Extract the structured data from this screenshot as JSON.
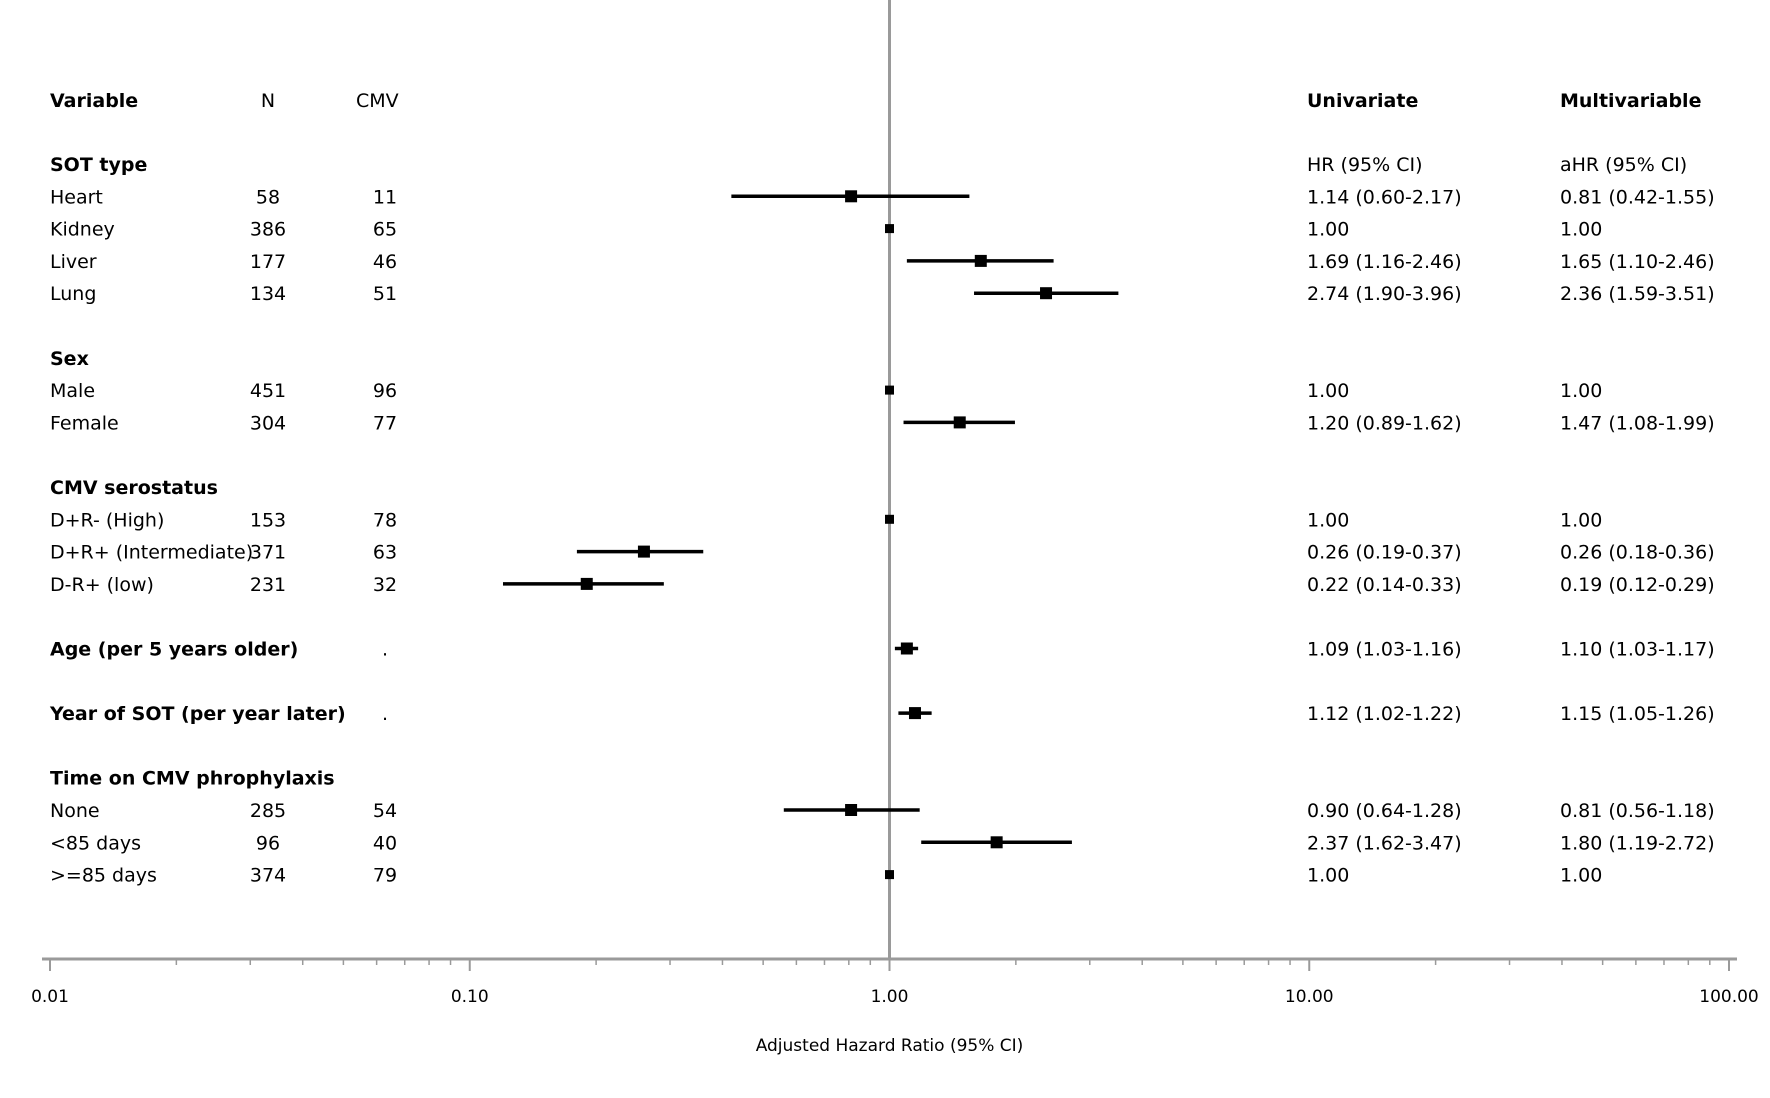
{
  "headers": {
    "variable": "Variable",
    "n": "N",
    "cmv": "CMV",
    "univariate": "Univariate",
    "multivariable": "Multivariable",
    "univariate_sub": "HR (95% CI)",
    "multivariable_sub": "aHR (95% CI)"
  },
  "rows": [
    {
      "type": "group",
      "label": "SOT type"
    },
    {
      "type": "item",
      "label": "Heart",
      "n": "58",
      "cmv": "11",
      "est": 0.81,
      "lo": 0.42,
      "hi": 1.55,
      "uni": "1.14 (0.60-2.17)",
      "multi": "0.81 (0.42-1.55)"
    },
    {
      "type": "item",
      "label": "Kidney",
      "n": "386",
      "cmv": "65",
      "est": 1.0,
      "lo": 1.0,
      "hi": 1.0,
      "uni": "1.00",
      "multi": "1.00"
    },
    {
      "type": "item",
      "label": "Liver",
      "n": "177",
      "cmv": "46",
      "est": 1.65,
      "lo": 1.1,
      "hi": 2.46,
      "uni": "1.69 (1.16-2.46)",
      "multi": "1.65 (1.10-2.46)"
    },
    {
      "type": "item",
      "label": "Lung",
      "n": "134",
      "cmv": "51",
      "est": 2.36,
      "lo": 1.59,
      "hi": 3.51,
      "uni": "2.74 (1.90-3.96)",
      "multi": "2.36 (1.59-3.51)"
    },
    {
      "type": "blank"
    },
    {
      "type": "group",
      "label": "Sex"
    },
    {
      "type": "item",
      "label": "Male",
      "n": "451",
      "cmv": "96",
      "est": 1.0,
      "lo": 1.0,
      "hi": 1.0,
      "uni": "1.00",
      "multi": "1.00"
    },
    {
      "type": "item",
      "label": "Female",
      "n": "304",
      "cmv": "77",
      "est": 1.47,
      "lo": 1.08,
      "hi": 1.99,
      "uni": "1.20 (0.89-1.62)",
      "multi": "1.47 (1.08-1.99)"
    },
    {
      "type": "blank"
    },
    {
      "type": "group",
      "label": "CMV serostatus"
    },
    {
      "type": "item",
      "label": "D+R- (High)",
      "n": "153",
      "cmv": "78",
      "est": 1.0,
      "lo": 1.0,
      "hi": 1.0,
      "uni": "1.00",
      "multi": "1.00"
    },
    {
      "type": "item",
      "label": "D+R+ (Intermediate)",
      "n": "371",
      "cmv": "63",
      "est": 0.26,
      "lo": 0.18,
      "hi": 0.36,
      "uni": "0.26 (0.19-0.37)",
      "multi": "0.26 (0.18-0.36)"
    },
    {
      "type": "item",
      "label": "D-R+ (low)",
      "n": "231",
      "cmv": "32",
      "est": 0.19,
      "lo": 0.12,
      "hi": 0.29,
      "uni": "0.22 (0.14-0.33)",
      "multi": "0.19 (0.12-0.29)"
    },
    {
      "type": "blank"
    },
    {
      "type": "groupitem",
      "label": "Age (per 5 years older)",
      "n": "",
      "cmv": ".",
      "est": 1.1,
      "lo": 1.03,
      "hi": 1.17,
      "uni": "1.09 (1.03-1.16)",
      "multi": "1.10 (1.03-1.17)"
    },
    {
      "type": "blank"
    },
    {
      "type": "groupitem",
      "label": "Year of SOT (per year later)",
      "n": "",
      "cmv": ".",
      "est": 1.15,
      "lo": 1.05,
      "hi": 1.26,
      "uni": "1.12 (1.02-1.22)",
      "multi": "1.15 (1.05-1.26)"
    },
    {
      "type": "blank"
    },
    {
      "type": "group",
      "label": "Time on CMV phrophylaxis"
    },
    {
      "type": "item",
      "label": "None",
      "n": "285",
      "cmv": "54",
      "est": 0.81,
      "lo": 0.56,
      "hi": 1.18,
      "uni": "0.90 (0.64-1.28)",
      "multi": "0.81 (0.56-1.18)"
    },
    {
      "type": "item",
      "label": "<85 days",
      "n": "96",
      "cmv": "40",
      "est": 1.8,
      "lo": 1.19,
      "hi": 2.72,
      "uni": "2.37 (1.62-3.47)",
      "multi": "1.80 (1.19-2.72)"
    },
    {
      "type": "item",
      "label": ">=85 days",
      "n": "374",
      "cmv": "79",
      "est": 1.0,
      "lo": 1.0,
      "hi": 1.0,
      "uni": "1.00",
      "multi": "1.00"
    }
  ],
  "chart_data": {
    "type": "forest",
    "xlabel": "Adjusted Hazard Ratio (95% CI)",
    "xscale": "log",
    "xlim": [
      0.01,
      100
    ],
    "xticks": [
      {
        "value": 0.01,
        "label": "0.01"
      },
      {
        "value": 0.1,
        "label": "0.10"
      },
      {
        "value": 1,
        "label": "1.00"
      },
      {
        "value": 10,
        "label": "10.00"
      },
      {
        "value": 100,
        "label": "100.00"
      }
    ],
    "reference_line": 1.0,
    "grid": false,
    "colors": {
      "reference": "#9a9a9a",
      "marker": "#000000",
      "axis": "#9a9a9a"
    }
  }
}
